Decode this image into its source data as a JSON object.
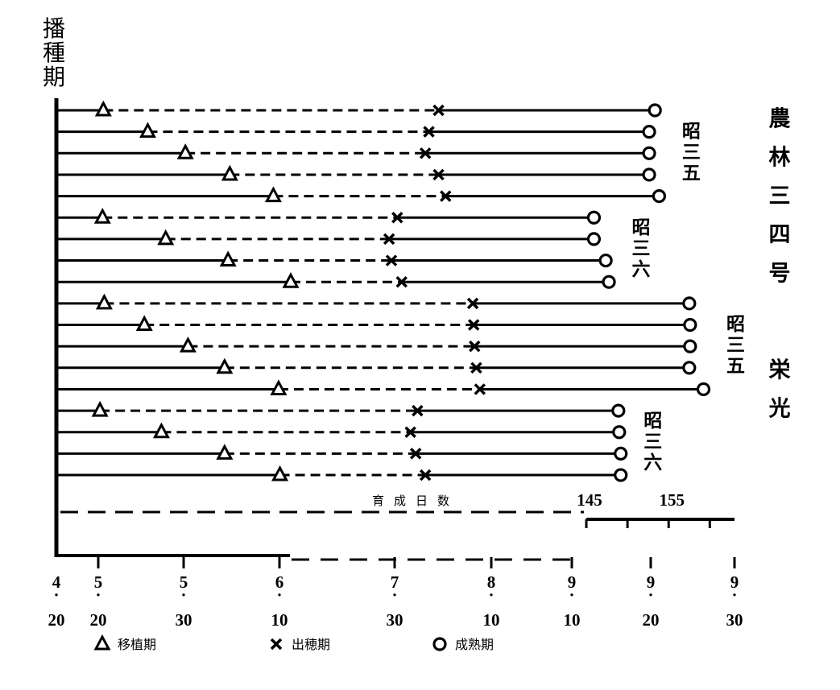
{
  "chart_data": {
    "type": "timeline",
    "y_label": "播種期",
    "x2_label": "育成日数",
    "xlim": [
      110,
      273
    ],
    "xticks": [
      {
        "value": 110,
        "label": "4·20"
      },
      {
        "value": 140,
        "label": "5·20"
      },
      {
        "value": 150,
        "label": "5·30"
      },
      {
        "value": 161,
        "label": "6·10"
      },
      {
        "value": 211,
        "label": "7·30"
      },
      {
        "value": 222,
        "label": "8·10"
      },
      {
        "value": 253,
        "label": "9·10"
      },
      {
        "value": 263,
        "label": "9·20"
      },
      {
        "value": 273,
        "label": "9·30"
      }
    ],
    "x2lim": [
      145,
      163
    ],
    "x2ticks": [
      145,
      155
    ],
    "x2minor_ticks": [
      150,
      160
    ],
    "series": [
      {
        "name": "移植期",
        "marker": "triangle",
        "color": "#000000"
      },
      {
        "name": "出穂期",
        "marker": "cross",
        "color": "#000000"
      },
      {
        "name": "成熟期",
        "marker": "circle",
        "color": "#000000"
      }
    ],
    "varieties": [
      {
        "name": "農林三四号",
        "years": [
          {
            "label": "昭三五",
            "rows": [
              [
                140.6,
                216,
                263.5
              ],
              [
                145.8,
                214.9,
                262.8
              ],
              [
                150.2,
                214.5,
                262.8
              ],
              [
                155.3,
                216,
                262.8
              ],
              [
                160.3,
                216.8,
                264
              ]
            ]
          },
          {
            "label": "昭三六",
            "rows": [
              [
                140.5,
                211.3,
                255.8
              ],
              [
                147.9,
                208.6,
                255.8
              ],
              [
                155.1,
                209.6,
                257.3
              ],
              [
                165.9,
                211.8,
                257.7
              ]
            ]
          }
        ]
      },
      {
        "name": "栄光",
        "years": [
          {
            "label": "昭三五",
            "rows": [
              [
                140.7,
                219.9,
                267.6
              ],
              [
                145.4,
                220,
                267.7
              ],
              [
                150.5,
                220.1,
                267.7
              ],
              [
                154.7,
                220.3,
                267.6
              ],
              [
                160.9,
                220.7,
                269.3
              ]
            ]
          },
          {
            "label": "昭三六",
            "rows": [
              [
                140.2,
                213.6,
                258.9
              ],
              [
                147.4,
                212.8,
                259
              ],
              [
                154.7,
                213.4,
                259.2
              ],
              [
                161.2,
                214.5,
                259.2
              ]
            ]
          }
        ]
      }
    ]
  }
}
